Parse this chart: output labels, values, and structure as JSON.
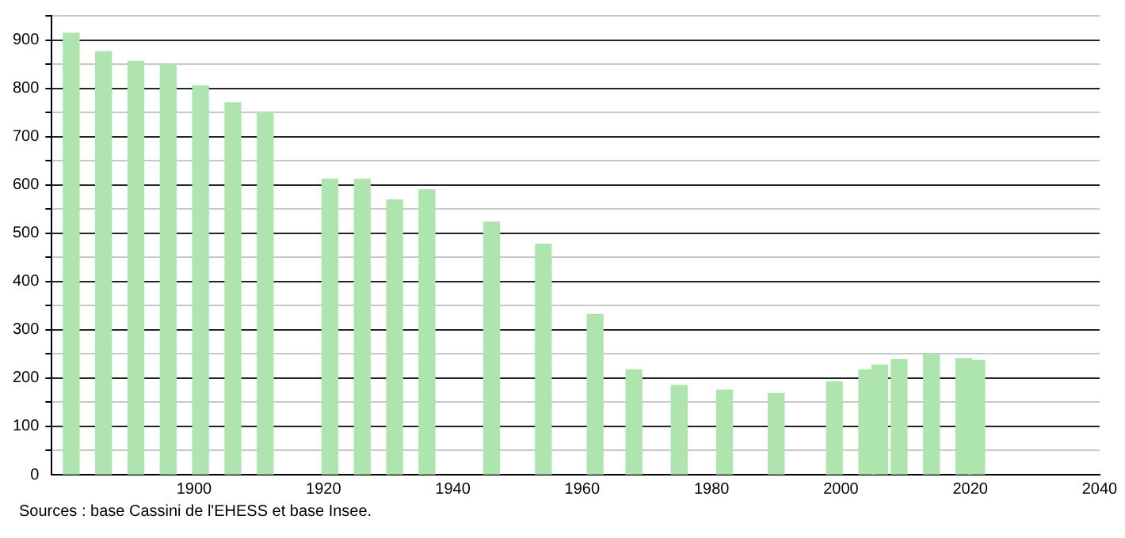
{
  "chart_data": {
    "type": "bar",
    "x": [
      1881,
      1886,
      1891,
      1896,
      1901,
      1906,
      1911,
      1921,
      1926,
      1931,
      1936,
      1946,
      1954,
      1962,
      1968,
      1975,
      1982,
      1990,
      1999,
      2004,
      2006,
      2009,
      2014,
      2019,
      2021
    ],
    "values": [
      914,
      876,
      856,
      850,
      805,
      770,
      751,
      612,
      612,
      569,
      590,
      523,
      477,
      332,
      217,
      185,
      175,
      168,
      192,
      217,
      227,
      238,
      249,
      240,
      237
    ],
    "color": "#aee5ae",
    "xlim": [
      1878,
      2040
    ],
    "xticks": [
      1900,
      1920,
      1940,
      1960,
      1980,
      2000,
      2020,
      2040
    ],
    "ylim": [
      0,
      950
    ],
    "yticks": [
      0,
      {
        "value": 50,
        "label": null
      },
      100,
      {
        "value": 150,
        "label": null
      },
      200,
      {
        "value": 250,
        "label": null
      },
      300,
      {
        "value": 350,
        "label": null
      },
      400,
      {
        "value": 450,
        "label": null
      },
      500,
      {
        "value": 550,
        "label": null
      },
      600,
      {
        "value": 650,
        "label": null
      },
      700,
      {
        "value": 750,
        "label": null
      },
      800,
      {
        "value": 850,
        "label": null
      },
      900,
      {
        "value": 950,
        "label": null
      }
    ],
    "grid": "y",
    "legend": false,
    "annotations": [
      "Sources : base Cassini de l'EHESS et base Insee."
    ]
  }
}
